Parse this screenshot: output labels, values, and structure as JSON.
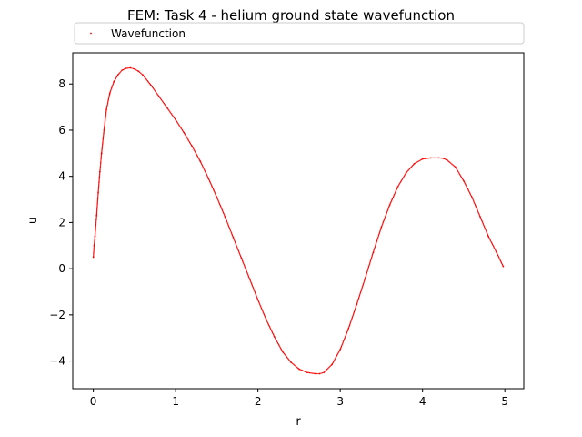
{
  "chart_data": {
    "type": "scatter",
    "title": "FEM: Task 4 - helium ground state wavefunction",
    "xlabel": "r",
    "ylabel": "u",
    "xlim": [
      -0.25,
      5.23
    ],
    "ylim": [
      -5.2,
      9.35
    ],
    "xticks": [
      0,
      1,
      2,
      3,
      4,
      5
    ],
    "yticks": [
      -4,
      -2,
      0,
      2,
      4,
      6,
      8
    ],
    "grid": false,
    "legend": {
      "placement": "top, above plot area, full width",
      "entries": [
        "Wavefunction"
      ]
    },
    "series": [
      {
        "name": "Wavefunction",
        "color": "#ff0000",
        "marker": "small-dot",
        "x": [
          0.0,
          0.01,
          0.02,
          0.04,
          0.06,
          0.08,
          0.1,
          0.13,
          0.16,
          0.2,
          0.25,
          0.3,
          0.35,
          0.4,
          0.45,
          0.5,
          0.55,
          0.6,
          0.7,
          0.8,
          0.9,
          1.0,
          1.1,
          1.2,
          1.3,
          1.4,
          1.5,
          1.6,
          1.7,
          1.8,
          1.9,
          2.0,
          2.1,
          2.2,
          2.3,
          2.4,
          2.5,
          2.6,
          2.7,
          2.75,
          2.8,
          2.9,
          3.0,
          3.1,
          3.2,
          3.3,
          3.4,
          3.5,
          3.6,
          3.7,
          3.8,
          3.9,
          4.0,
          4.1,
          4.2,
          4.25,
          4.3,
          4.4,
          4.5,
          4.6,
          4.7,
          4.8,
          4.9,
          4.98
        ],
        "y": [
          0.5,
          1.0,
          1.4,
          2.3,
          3.3,
          4.2,
          5.0,
          6.0,
          6.9,
          7.6,
          8.1,
          8.4,
          8.6,
          8.68,
          8.7,
          8.65,
          8.55,
          8.4,
          7.95,
          7.45,
          6.95,
          6.45,
          5.9,
          5.3,
          4.65,
          3.9,
          3.1,
          2.25,
          1.35,
          0.45,
          -0.45,
          -1.35,
          -2.2,
          -2.95,
          -3.6,
          -4.05,
          -4.35,
          -4.5,
          -4.55,
          -4.55,
          -4.5,
          -4.15,
          -3.5,
          -2.6,
          -1.55,
          -0.45,
          0.7,
          1.8,
          2.75,
          3.55,
          4.15,
          4.55,
          4.75,
          4.8,
          4.8,
          4.78,
          4.7,
          4.4,
          3.8,
          3.1,
          2.25,
          1.4,
          0.7,
          0.1
        ]
      }
    ]
  }
}
